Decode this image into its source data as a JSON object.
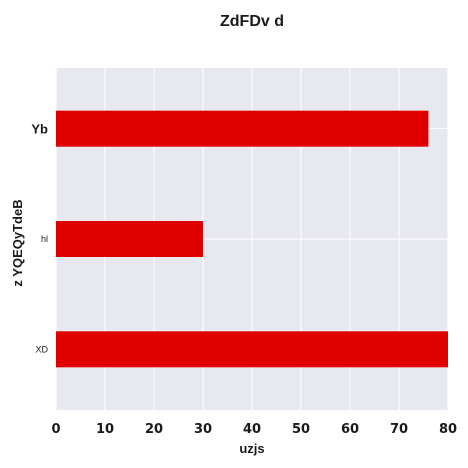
{
  "chart_data": {
    "type": "bar",
    "orientation": "horizontal",
    "title": "ZdFDv d",
    "xlabel": "uzjs",
    "ylabel": "z YQEQyTdeB",
    "categories": [
      "Yb",
      "hl",
      "XD"
    ],
    "values": [
      76,
      30,
      80
    ],
    "xlim": [
      0,
      80
    ],
    "xticks": [
      "0",
      "10",
      "20",
      "30",
      "40",
      "50",
      "60",
      "70",
      "80"
    ],
    "grid": true,
    "colors": {
      "bar": "#e00000",
      "plot_background": "#e8e8f0",
      "grid": "#ffffff",
      "text": "#1a1a1a"
    }
  }
}
